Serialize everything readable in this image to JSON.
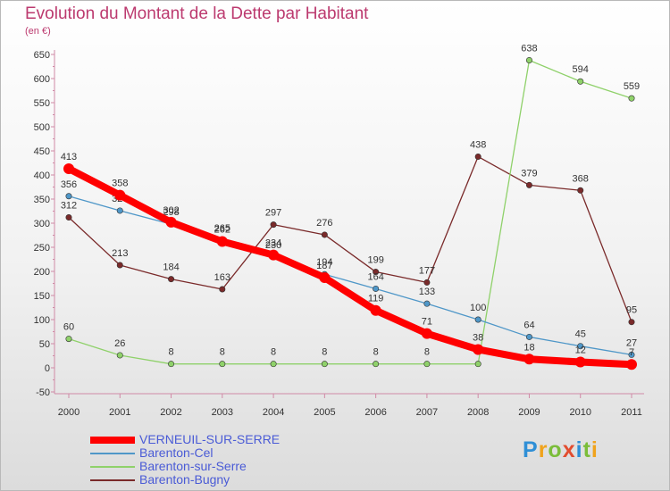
{
  "title": "Evolution du Montant de la Dette par Habitant",
  "unit": "(en €)",
  "logo": {
    "letters": [
      "P",
      "r",
      "o",
      "x",
      "i",
      "t",
      "i"
    ],
    "colors": [
      "#2f8fd6",
      "#f0a31c",
      "#7bbd3a",
      "#e24d2f",
      "#2f8fd6",
      "#7bbd3a",
      "#f0a31c"
    ]
  },
  "chart_data": {
    "type": "line",
    "title": "Evolution du Montant de la Dette par Habitant",
    "ylabel": "(en €)",
    "ylim": [
      -50,
      650
    ],
    "yticks": [
      -50,
      0,
      50,
      100,
      150,
      200,
      250,
      300,
      350,
      400,
      450,
      500,
      550,
      600,
      650
    ],
    "x": [
      "2000",
      "2001",
      "2002",
      "2003",
      "2004",
      "2005",
      "2006",
      "2007",
      "2008",
      "2009",
      "2010",
      "2011"
    ],
    "grid": false,
    "legend": "bottom-left",
    "series": [
      {
        "name": "VERNEUIL-SUR-SERRE",
        "color": "#ff0000",
        "values": [
          413,
          358,
          302,
          262,
          234,
          187,
          119,
          71,
          38,
          18,
          12,
          7
        ]
      },
      {
        "name": "Barenton-Cel",
        "color": "#4f97c8",
        "values": [
          356,
          326,
          298,
          265,
          230,
          194,
          164,
          133,
          100,
          64,
          45,
          27
        ]
      },
      {
        "name": "Barenton-sur-Serre",
        "color": "#8fd16a",
        "values": [
          60,
          26,
          8,
          8,
          8,
          8,
          8,
          8,
          8,
          638,
          594,
          559
        ]
      },
      {
        "name": "Barenton-Bugny",
        "color": "#7a2a2a",
        "values": [
          312,
          213,
          184,
          163,
          297,
          276,
          199,
          177,
          438,
          379,
          368,
          95
        ]
      }
    ]
  }
}
